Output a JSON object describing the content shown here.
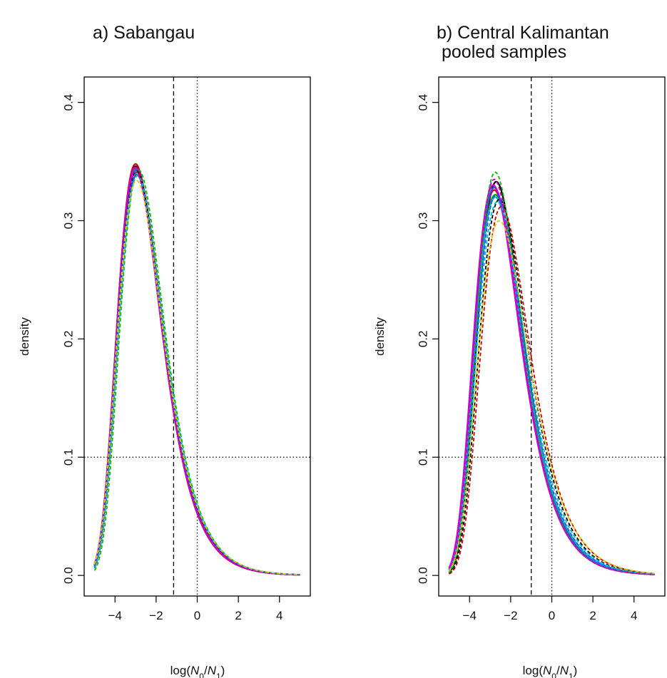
{
  "chart_data": [
    {
      "type": "line",
      "title": "a) Sabangau",
      "subtitle": "",
      "xlabel": "log(N0/N1)",
      "ylabel": "density",
      "xlim": [
        -5.5,
        5.5
      ],
      "ylim": [
        -0.0174,
        0.4215
      ],
      "xticks": [
        -4,
        -2,
        0,
        2,
        4
      ],
      "xtick_labels": [
        "−4",
        "−2",
        "0",
        "2",
        "4"
      ],
      "yticks": [
        0.0,
        0.1,
        0.2,
        0.3,
        0.4
      ],
      "ytick_labels": [
        "0.0",
        "0.1",
        "0.2",
        "0.3",
        "0.4"
      ],
      "grid": false,
      "reference_lines": [
        {
          "orientation": "vertical",
          "value": -1.15,
          "style": "dashed"
        },
        {
          "orientation": "vertical",
          "value": 0,
          "style": "dotted"
        },
        {
          "orientation": "horizontal",
          "value": 0.1,
          "style": "dotted"
        }
      ],
      "series": [
        {
          "color": "#000000",
          "style": "solid",
          "peak_x": -3.0,
          "peak_y": 0.346
        },
        {
          "color": "#cc0000",
          "style": "solid",
          "peak_x": -3.0,
          "peak_y": 0.348
        },
        {
          "color": "#00aa00",
          "style": "solid",
          "peak_x": -3.0,
          "peak_y": 0.344
        },
        {
          "color": "#2255ff",
          "style": "solid",
          "peak_x": -2.95,
          "peak_y": 0.343
        },
        {
          "color": "#00bbcc",
          "style": "solid",
          "peak_x": -2.95,
          "peak_y": 0.341
        },
        {
          "color": "#cc00cc",
          "style": "solid",
          "peak_x": -3.0,
          "peak_y": 0.345
        },
        {
          "color": "#000000",
          "style": "dashed",
          "peak_x": -2.95,
          "peak_y": 0.342
        },
        {
          "color": "#cc0000",
          "style": "dashed",
          "peak_x": -2.9,
          "peak_y": 0.34
        },
        {
          "color": "#00bb00",
          "style": "dashed",
          "peak_x": -2.85,
          "peak_y": 0.343
        },
        {
          "color": "#2255ff",
          "style": "dashed",
          "peak_x": -2.95,
          "peak_y": 0.339
        },
        {
          "color": "#00bbcc",
          "style": "dashed",
          "peak_x": -2.9,
          "peak_y": 0.338
        },
        {
          "color": "#cc00cc",
          "style": "dashed",
          "peak_x": -3.0,
          "peak_y": 0.341
        },
        {
          "color": "#ddcc00",
          "style": "dashed",
          "peak_x": -2.95,
          "peak_y": 0.334
        }
      ]
    },
    {
      "type": "line",
      "title": "b) Central Kalimantan",
      "subtitle": "pooled samples",
      "xlabel": "log(N0/N1)",
      "ylabel": "density",
      "xlim": [
        -5.5,
        5.5
      ],
      "ylim": [
        -0.0174,
        0.4215
      ],
      "xticks": [
        -4,
        -2,
        0,
        2,
        4
      ],
      "xtick_labels": [
        "−4",
        "−2",
        "0",
        "2",
        "4"
      ],
      "yticks": [
        0.0,
        0.1,
        0.2,
        0.3,
        0.4
      ],
      "ytick_labels": [
        "0.0",
        "0.1",
        "0.2",
        "0.3",
        "0.4"
      ],
      "grid": false,
      "reference_lines": [
        {
          "orientation": "vertical",
          "value": -1.0,
          "style": "dashed"
        },
        {
          "orientation": "vertical",
          "value": 0,
          "style": "dotted"
        },
        {
          "orientation": "horizontal",
          "value": 0.1,
          "style": "dotted"
        }
      ],
      "series": [
        {
          "color": "#000000",
          "style": "solid",
          "peak_x": -2.7,
          "peak_y": 0.333
        },
        {
          "color": "#cc0000",
          "style": "solid",
          "peak_x": -2.8,
          "peak_y": 0.326
        },
        {
          "color": "#00aa00",
          "style": "solid",
          "peak_x": -2.75,
          "peak_y": 0.322
        },
        {
          "color": "#2255ff",
          "style": "solid",
          "peak_x": -2.8,
          "peak_y": 0.328
        },
        {
          "color": "#00bbcc",
          "style": "solid",
          "peak_x": -2.75,
          "peak_y": 0.32
        },
        {
          "color": "#cc00cc",
          "style": "solid",
          "peak_x": -2.85,
          "peak_y": 0.33
        },
        {
          "color": "#000000",
          "style": "dashed",
          "peak_x": -2.55,
          "peak_y": 0.318
        },
        {
          "color": "#cc0000",
          "style": "dashed",
          "peak_x": -2.45,
          "peak_y": 0.312
        },
        {
          "color": "#00bb00",
          "style": "dashed",
          "peak_x": -2.75,
          "peak_y": 0.341
        },
        {
          "color": "#2255ff",
          "style": "dashed",
          "peak_x": -2.7,
          "peak_y": 0.322
        },
        {
          "color": "#00bbcc",
          "style": "dashed",
          "peak_x": -2.65,
          "peak_y": 0.316
        },
        {
          "color": "#cc00cc",
          "style": "dashed",
          "peak_x": -2.8,
          "peak_y": 0.335
        },
        {
          "color": "#ddcc00",
          "style": "dashed",
          "peak_x": -2.55,
          "peak_y": 0.3
        }
      ]
    }
  ]
}
